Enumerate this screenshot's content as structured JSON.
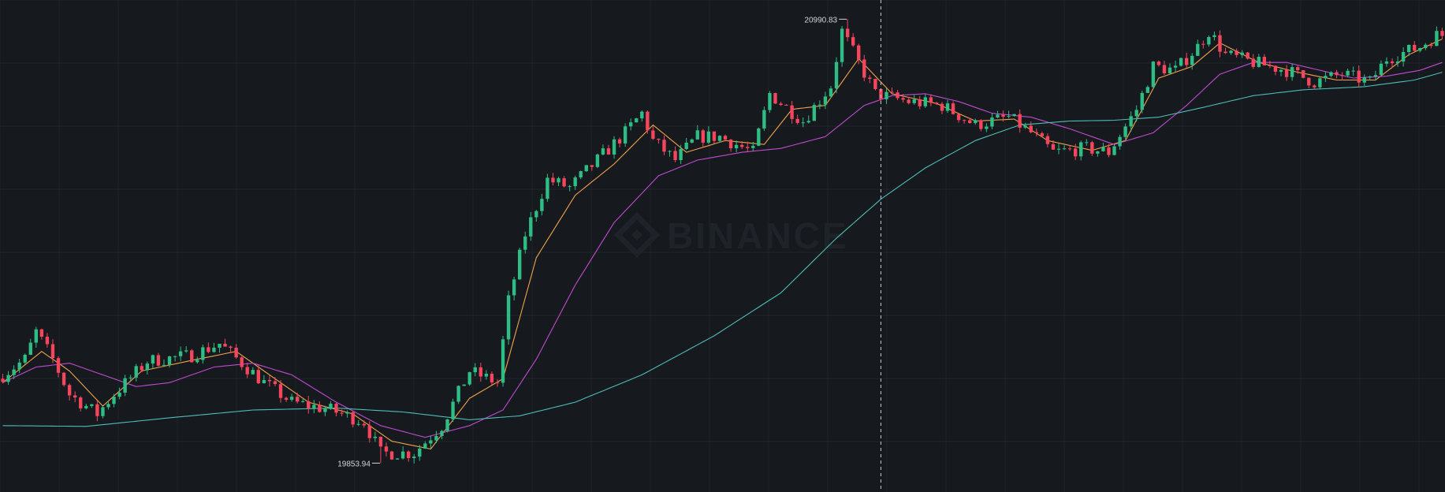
{
  "watermark": {
    "text": "BINANCE",
    "icon": "binance-diamond-icon"
  },
  "colors": {
    "background": "#161a1e",
    "grid": "#1f2429",
    "up": "#2ebd85",
    "down": "#f6465d",
    "ma_short": "#f0a24b",
    "ma_mid": "#c04ad1",
    "ma_long": "#4fbcb6",
    "crosshair": "#c8cbd0",
    "label": "#d1d4dc"
  },
  "chart_data": {
    "type": "candlestick",
    "title": "",
    "xlabel": "",
    "ylabel": "",
    "grid": true,
    "ylim": [
      19780,
      21040
    ],
    "candle_count": 260,
    "crosshair_index": 158,
    "annotations": {
      "high": {
        "label": "20990.83",
        "value": 20990.83,
        "index": 152
      },
      "low": {
        "label": "19853.94",
        "value": 19853.94,
        "index": 68
      }
    },
    "trend": [
      {
        "i": 0,
        "p": 20070
      },
      {
        "i": 5,
        "p": 20120
      },
      {
        "i": 7,
        "p": 20190
      },
      {
        "i": 10,
        "p": 20120
      },
      {
        "i": 13,
        "p": 20030
      },
      {
        "i": 18,
        "p": 19980
      },
      {
        "i": 21,
        "p": 20030
      },
      {
        "i": 27,
        "p": 20115
      },
      {
        "i": 35,
        "p": 20130
      },
      {
        "i": 40,
        "p": 20160
      },
      {
        "i": 44,
        "p": 20110
      },
      {
        "i": 48,
        "p": 20060
      },
      {
        "i": 53,
        "p": 20010
      },
      {
        "i": 60,
        "p": 19990
      },
      {
        "i": 66,
        "p": 19960
      },
      {
        "i": 69,
        "p": 19880
      },
      {
        "i": 75,
        "p": 19880
      },
      {
        "i": 80,
        "p": 19950
      },
      {
        "i": 85,
        "p": 20090
      },
      {
        "i": 90,
        "p": 20060
      },
      {
        "i": 92,
        "p": 20270
      },
      {
        "i": 95,
        "p": 20440
      },
      {
        "i": 99,
        "p": 20580
      },
      {
        "i": 103,
        "p": 20560
      },
      {
        "i": 108,
        "p": 20630
      },
      {
        "i": 113,
        "p": 20700
      },
      {
        "i": 116,
        "p": 20750
      },
      {
        "i": 118,
        "p": 20680
      },
      {
        "i": 122,
        "p": 20630
      },
      {
        "i": 126,
        "p": 20690
      },
      {
        "i": 130,
        "p": 20690
      },
      {
        "i": 136,
        "p": 20650
      },
      {
        "i": 139,
        "p": 20800
      },
      {
        "i": 145,
        "p": 20730
      },
      {
        "i": 150,
        "p": 20820
      },
      {
        "i": 152,
        "p": 20960
      },
      {
        "i": 155,
        "p": 20880
      },
      {
        "i": 158,
        "p": 20800
      },
      {
        "i": 164,
        "p": 20780
      },
      {
        "i": 170,
        "p": 20770
      },
      {
        "i": 176,
        "p": 20720
      },
      {
        "i": 182,
        "p": 20740
      },
      {
        "i": 186,
        "p": 20700
      },
      {
        "i": 190,
        "p": 20650
      },
      {
        "i": 196,
        "p": 20660
      },
      {
        "i": 200,
        "p": 20650
      },
      {
        "i": 205,
        "p": 20760
      },
      {
        "i": 208,
        "p": 20870
      },
      {
        "i": 212,
        "p": 20860
      },
      {
        "i": 216,
        "p": 20920
      },
      {
        "i": 218,
        "p": 20960
      },
      {
        "i": 221,
        "p": 20900
      },
      {
        "i": 226,
        "p": 20880
      },
      {
        "i": 232,
        "p": 20860
      },
      {
        "i": 237,
        "p": 20830
      },
      {
        "i": 242,
        "p": 20850
      },
      {
        "i": 247,
        "p": 20830
      },
      {
        "i": 250,
        "p": 20890
      },
      {
        "i": 256,
        "p": 20920
      },
      {
        "i": 259,
        "p": 20950
      }
    ],
    "series": [
      {
        "key": "ma_short",
        "points": [
          {
            "i": 0,
            "p": 20060
          },
          {
            "i": 7,
            "p": 20140
          },
          {
            "i": 12,
            "p": 20090
          },
          {
            "i": 18,
            "p": 20000
          },
          {
            "i": 25,
            "p": 20090
          },
          {
            "i": 35,
            "p": 20120
          },
          {
            "i": 42,
            "p": 20140
          },
          {
            "i": 48,
            "p": 20080
          },
          {
            "i": 55,
            "p": 20010
          },
          {
            "i": 63,
            "p": 19980
          },
          {
            "i": 70,
            "p": 19910
          },
          {
            "i": 77,
            "p": 19890
          },
          {
            "i": 84,
            "p": 20020
          },
          {
            "i": 90,
            "p": 20070
          },
          {
            "i": 96,
            "p": 20380
          },
          {
            "i": 103,
            "p": 20540
          },
          {
            "i": 110,
            "p": 20620
          },
          {
            "i": 117,
            "p": 20720
          },
          {
            "i": 123,
            "p": 20650
          },
          {
            "i": 130,
            "p": 20680
          },
          {
            "i": 137,
            "p": 20670
          },
          {
            "i": 142,
            "p": 20760
          },
          {
            "i": 148,
            "p": 20770
          },
          {
            "i": 154,
            "p": 20890
          },
          {
            "i": 160,
            "p": 20800
          },
          {
            "i": 168,
            "p": 20775
          },
          {
            "i": 175,
            "p": 20730
          },
          {
            "i": 182,
            "p": 20735
          },
          {
            "i": 188,
            "p": 20680
          },
          {
            "i": 196,
            "p": 20655
          },
          {
            "i": 202,
            "p": 20680
          },
          {
            "i": 208,
            "p": 20840
          },
          {
            "i": 214,
            "p": 20870
          },
          {
            "i": 219,
            "p": 20930
          },
          {
            "i": 226,
            "p": 20880
          },
          {
            "i": 233,
            "p": 20855
          },
          {
            "i": 240,
            "p": 20835
          },
          {
            "i": 247,
            "p": 20835
          },
          {
            "i": 253,
            "p": 20900
          },
          {
            "i": 259,
            "p": 20940
          }
        ]
      },
      {
        "key": "ma_mid",
        "points": [
          {
            "i": 0,
            "p": 20060
          },
          {
            "i": 6,
            "p": 20100
          },
          {
            "i": 12,
            "p": 20110
          },
          {
            "i": 18,
            "p": 20080
          },
          {
            "i": 24,
            "p": 20050
          },
          {
            "i": 30,
            "p": 20060
          },
          {
            "i": 38,
            "p": 20100
          },
          {
            "i": 45,
            "p": 20110
          },
          {
            "i": 52,
            "p": 20080
          },
          {
            "i": 60,
            "p": 20010
          },
          {
            "i": 68,
            "p": 19950
          },
          {
            "i": 76,
            "p": 19920
          },
          {
            "i": 84,
            "p": 19950
          },
          {
            "i": 90,
            "p": 19990
          },
          {
            "i": 96,
            "p": 20120
          },
          {
            "i": 103,
            "p": 20310
          },
          {
            "i": 110,
            "p": 20470
          },
          {
            "i": 118,
            "p": 20590
          },
          {
            "i": 125,
            "p": 20630
          },
          {
            "i": 133,
            "p": 20650
          },
          {
            "i": 140,
            "p": 20660
          },
          {
            "i": 148,
            "p": 20690
          },
          {
            "i": 155,
            "p": 20770
          },
          {
            "i": 160,
            "p": 20795
          },
          {
            "i": 166,
            "p": 20800
          },
          {
            "i": 172,
            "p": 20780
          },
          {
            "i": 178,
            "p": 20750
          },
          {
            "i": 185,
            "p": 20740
          },
          {
            "i": 192,
            "p": 20710
          },
          {
            "i": 200,
            "p": 20670
          },
          {
            "i": 207,
            "p": 20700
          },
          {
            "i": 213,
            "p": 20770
          },
          {
            "i": 219,
            "p": 20850
          },
          {
            "i": 225,
            "p": 20880
          },
          {
            "i": 231,
            "p": 20880
          },
          {
            "i": 237,
            "p": 20860
          },
          {
            "i": 243,
            "p": 20840
          },
          {
            "i": 249,
            "p": 20845
          },
          {
            "i": 255,
            "p": 20860
          },
          {
            "i": 259,
            "p": 20880
          }
        ]
      },
      {
        "key": "ma_long",
        "points": [
          {
            "i": 0,
            "p": 19950
          },
          {
            "i": 15,
            "p": 19948
          },
          {
            "i": 30,
            "p": 19970
          },
          {
            "i": 45,
            "p": 19990
          },
          {
            "i": 60,
            "p": 19995
          },
          {
            "i": 72,
            "p": 19985
          },
          {
            "i": 84,
            "p": 19965
          },
          {
            "i": 93,
            "p": 19975
          },
          {
            "i": 103,
            "p": 20010
          },
          {
            "i": 115,
            "p": 20080
          },
          {
            "i": 128,
            "p": 20180
          },
          {
            "i": 140,
            "p": 20290
          },
          {
            "i": 150,
            "p": 20430
          },
          {
            "i": 158,
            "p": 20530
          },
          {
            "i": 166,
            "p": 20610
          },
          {
            "i": 175,
            "p": 20680
          },
          {
            "i": 183,
            "p": 20720
          },
          {
            "i": 192,
            "p": 20730
          },
          {
            "i": 200,
            "p": 20732
          },
          {
            "i": 208,
            "p": 20740
          },
          {
            "i": 216,
            "p": 20765
          },
          {
            "i": 225,
            "p": 20795
          },
          {
            "i": 234,
            "p": 20810
          },
          {
            "i": 245,
            "p": 20818
          },
          {
            "i": 254,
            "p": 20835
          },
          {
            "i": 259,
            "p": 20855
          }
        ]
      }
    ]
  }
}
